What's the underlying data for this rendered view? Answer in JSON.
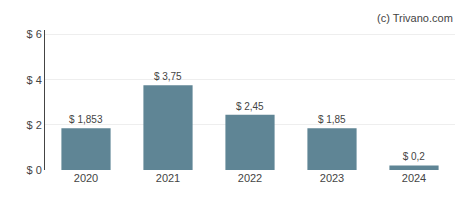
{
  "chart_data": {
    "type": "bar",
    "categories": [
      "2020",
      "2021",
      "2022",
      "2023",
      "2024"
    ],
    "values": [
      1.853,
      3.75,
      2.45,
      1.85,
      0.2
    ],
    "value_labels": [
      "$ 1,853",
      "$ 3,75",
      "$ 2,45",
      "$ 1,85",
      "$ 0,2"
    ],
    "data_labels": true,
    "color": "#5f8595",
    "ylim": [
      0,
      6.2
    ],
    "yticks": [
      {
        "value": 0,
        "label": "$ 0"
      },
      {
        "value": 2,
        "label": "$ 2"
      },
      {
        "value": 4,
        "label": "$ 4"
      },
      {
        "value": 6,
        "label": "$ 6"
      }
    ],
    "grid": true,
    "annotations": [
      "(c) Trivano.com"
    ]
  }
}
